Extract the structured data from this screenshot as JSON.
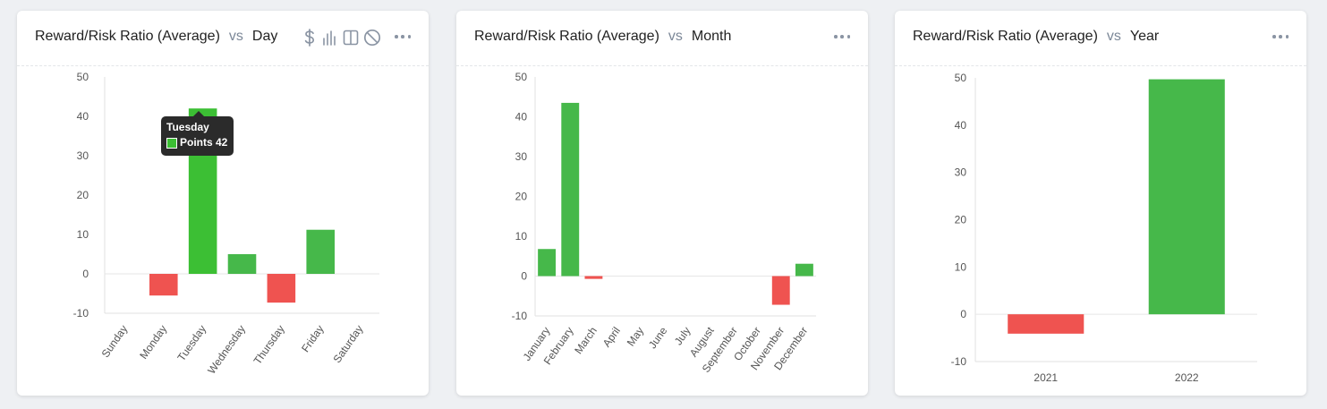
{
  "colors": {
    "positive": "#46b84a",
    "highlight": "#3cbf34",
    "negative": "#ef5350"
  },
  "icons": [
    "dollar-icon",
    "bar-chart-icon",
    "split-view-icon",
    "ban-icon",
    "more-icon"
  ],
  "cards": [
    {
      "title": "Reward/Risk Ratio (Average)",
      "vs": "vs",
      "dimension": "Day",
      "tooltip": {
        "title": "Tuesday",
        "label": "Points 42"
      }
    },
    {
      "title": "Reward/Risk Ratio (Average)",
      "vs": "vs",
      "dimension": "Month"
    },
    {
      "title": "Reward/Risk Ratio (Average)",
      "vs": "vs",
      "dimension": "Year"
    }
  ],
  "chart_data": [
    {
      "type": "bar",
      "categories": [
        "Sunday",
        "Monday",
        "Tuesday",
        "Wednesday",
        "Thursday",
        "Friday",
        "Saturday"
      ],
      "values": [
        null,
        -5.5,
        42,
        5,
        -7.3,
        11.2,
        null
      ],
      "ylim": [
        -10,
        50
      ],
      "yticks": [
        -10,
        0,
        10,
        20,
        30,
        40,
        50
      ],
      "xlabel_rotation": -55
    },
    {
      "type": "bar",
      "categories": [
        "January",
        "February",
        "March",
        "April",
        "May",
        "June",
        "July",
        "August",
        "September",
        "October",
        "November",
        "December"
      ],
      "values": [
        6.8,
        43.5,
        -0.7,
        null,
        null,
        null,
        null,
        null,
        null,
        null,
        -7.2,
        3.1
      ],
      "ylim": [
        -10,
        50
      ],
      "yticks": [
        -10,
        0,
        10,
        20,
        30,
        40,
        50
      ],
      "xlabel_rotation": -55
    },
    {
      "type": "bar",
      "categories": [
        "2021",
        "2022"
      ],
      "values": [
        -4.1,
        49.7
      ],
      "ylim": [
        -10,
        50
      ],
      "yticks": [
        -10,
        0,
        10,
        20,
        30,
        40,
        50
      ],
      "xlabel_rotation": 0
    }
  ]
}
